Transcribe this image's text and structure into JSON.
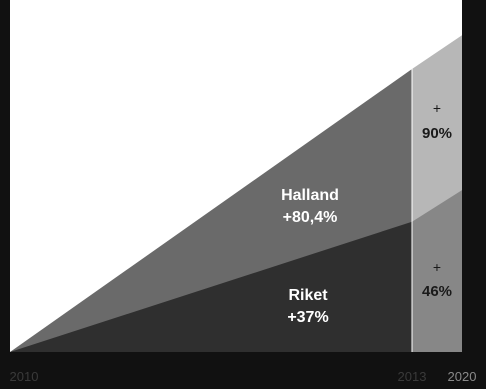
{
  "chart_data": {
    "type": "area",
    "x": [
      "2010",
      "2013",
      "2020"
    ],
    "x_tick_labels": [
      "2010",
      "2013",
      "2020"
    ],
    "series": [
      {
        "name": "Halland",
        "label_value": "+80,4%",
        "values": [
          0,
          80.4,
          90
        ],
        "extension_label_top": "+",
        "extension_label_value": "90%"
      },
      {
        "name": "Riket",
        "label_value": "+37%",
        "values": [
          0,
          37,
          46
        ],
        "extension_label_top": "+",
        "extension_label_value": "46%"
      }
    ],
    "ylim": [
      0,
      100
    ],
    "grid": false,
    "legend": "none",
    "colors": {
      "background": "#111111",
      "halland_main": "#6a6a6a",
      "riket_main": "#2f2f2f",
      "halland_ext": "#b7b7b7",
      "riket_ext": "#878787",
      "text_light": "#ffffff",
      "text_dark": "#1a1a1a",
      "divider": "#ffffff",
      "plot_white": "#ffffff"
    }
  }
}
